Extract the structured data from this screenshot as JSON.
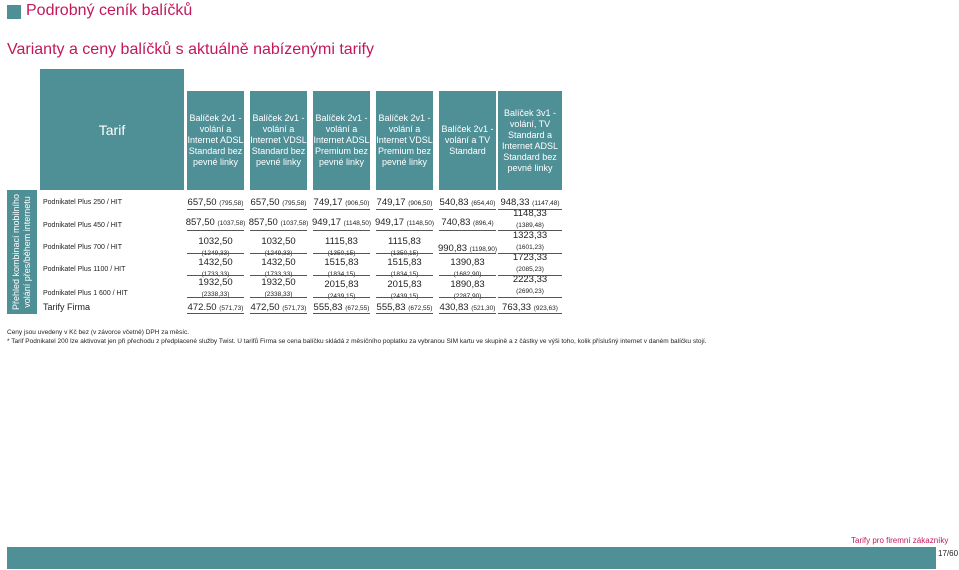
{
  "page_title": "Podrobný ceník balíčků",
  "subtitle": "Varianty a ceny balíčků s aktuálně nabízenými tarify",
  "side_label": "Přehled kombinací mobilního volání přes/během internetu",
  "table": {
    "corner_label": "Tarif",
    "columns": [
      "Balíček 2v1 - volání a Internet ADSL Standard bez pevné linky",
      "Balíček 2v1 - volání a Internet VDSL Standard bez pevné linky",
      "Balíček 2v1 - volání a Internet ADSL Premium bez pevné linky",
      "Balíček 2v1 - volání a Internet VDSL Premium bez pevné linky",
      "Balíček 2v1 - volání a TV Standard",
      "Balíček 3v1 - volání, TV Standard a Internet ADSL Standard bez pevné linky"
    ],
    "rows": [
      {
        "label": "Podnikatel Plus 250 / HIT",
        "cells": [
          {
            "v": "657,50",
            "p": "(795,58)"
          },
          {
            "v": "657,50",
            "p": "(795,58)"
          },
          {
            "v": "749,17",
            "p": "(906,50)"
          },
          {
            "v": "749,17",
            "p": "(906,50)"
          },
          {
            "v": "540,83",
            "p": "(654,40)"
          },
          {
            "v": "948,33",
            "p": "(1147,48)"
          }
        ]
      },
      {
        "label": "Podnikatel Plus 450 / HIT",
        "cells": [
          {
            "v": "857,50",
            "p": "(1037,58)"
          },
          {
            "v": "857,50",
            "p": "(1037,58)"
          },
          {
            "v": "949,17",
            "p": "(1148,50)"
          },
          {
            "v": "949,17",
            "p": "(1148,50)"
          },
          {
            "v": "740,83",
            "p": "(896,4)"
          },
          {
            "v": "1148,33",
            "p": "(1389,48)"
          }
        ]
      },
      {
        "label": "Podnikatel Plus 700 / HIT",
        "cells": [
          {
            "v": "1032,50",
            "p": "(1249,33)"
          },
          {
            "v": "1032,50",
            "p": "(1249,33)"
          },
          {
            "v": "1115,83",
            "p": "(1350,15)"
          },
          {
            "v": "1115,83",
            "p": "(1350,15)"
          },
          {
            "v": "990,83",
            "p": "(1198,90)"
          },
          {
            "v": "1323,33",
            "p": "(1601,23)"
          }
        ]
      },
      {
        "label": "Podnikatel Plus 1100 / HIT",
        "cells": [
          {
            "v": "1432,50",
            "p": "(1733,33)"
          },
          {
            "v": "1432,50",
            "p": "(1733,33)"
          },
          {
            "v": "1515,83",
            "p": "(1834,15)"
          },
          {
            "v": "1515,83",
            "p": "(1834,15)"
          },
          {
            "v": "1390,83",
            "p": "(1682,90)"
          },
          {
            "v": "1723,33",
            "p": "(2085,23)"
          }
        ]
      },
      {
        "label": "Podnikatel Plus 1 600 / HIT",
        "cells": [
          {
            "v": "1932,50",
            "p": "(2338,33)"
          },
          {
            "v": "1932,50",
            "p": "(2338,33)"
          },
          {
            "v": "2015,83",
            "p": "(2439,15)"
          },
          {
            "v": "2015,83",
            "p": "(2439,15)"
          },
          {
            "v": "1890,83",
            "p": "(2287,90)"
          },
          {
            "v": "2223,33",
            "p": "(2690,23)"
          }
        ]
      }
    ],
    "firm_row": {
      "label": "Tarify Firma",
      "cells": [
        {
          "v": "472.50",
          "p": "(571,73)"
        },
        {
          "v": "472,50",
          "p": "(571,73)"
        },
        {
          "v": "555,83",
          "p": "(672,55)"
        },
        {
          "v": "555,83",
          "p": "(672,55)"
        },
        {
          "v": "430,83",
          "p": "(521,30)"
        },
        {
          "v": "763,33",
          "p": "(923,63)"
        }
      ]
    }
  },
  "notes": [
    "Ceny jsou uvedeny v Kč bez (v závorce včetně) DPH za měsíc.",
    "* Tarif Podnikatel 200 lze aktivovat jen při přechodu z předplacené služby Twist. U tarifů Firma se cena balíčku skládá z měsíčního poplatku za vybranou SIM kartu ve skupině a z částky ve výši toho, kolik příslušný internet v daném balíčku stojí."
  ],
  "footer": {
    "text": "Tarify pro firemní zákazníky",
    "page": "17/60"
  },
  "colors": {
    "accent": "#c2185b",
    "band": "#4f8f96"
  }
}
